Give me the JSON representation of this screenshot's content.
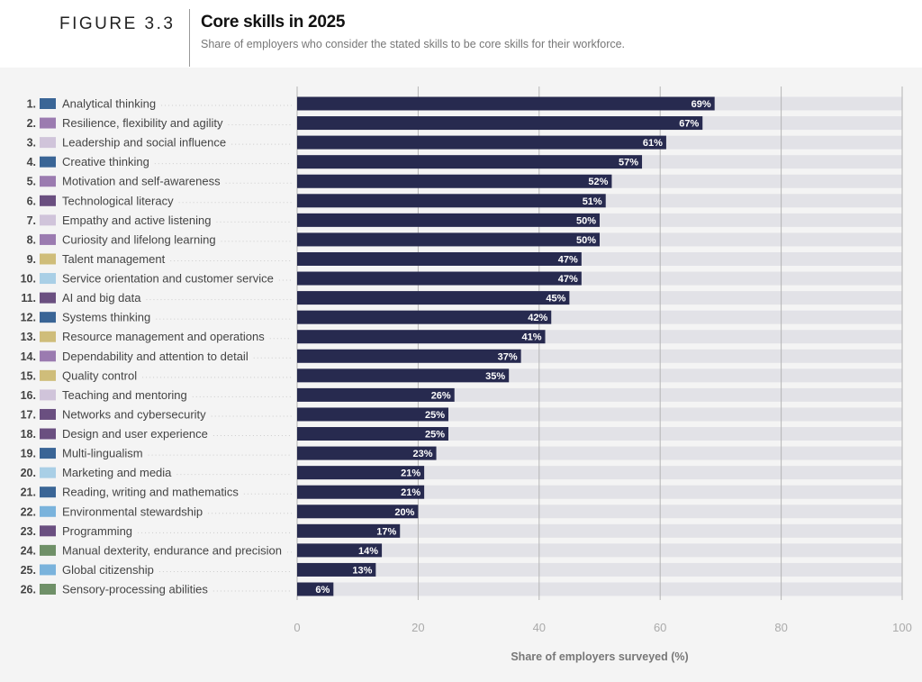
{
  "figure_label": "FIGURE 3.3",
  "chart_data": {
    "type": "bar",
    "orientation": "horizontal",
    "title": "Core skills in 2025",
    "subtitle": "Share of employers who consider the stated skills to be core skills for their workforce.",
    "xlabel": "Share of employers surveyed (%)",
    "xlim": [
      0,
      100
    ],
    "xticks": [
      0,
      20,
      40,
      60,
      80,
      100
    ],
    "grid": true,
    "bar_color": "#272a4f",
    "track_color": "#e2e2e7",
    "categories": [
      "Analytical thinking",
      "Resilience, flexibility and agility",
      "Leadership and social influence",
      "Creative thinking",
      "Motivation and self-awareness",
      "Technological literacy",
      "Empathy and active listening",
      "Curiosity and lifelong learning",
      "Talent management",
      "Service orientation and customer service",
      "AI and big data",
      "Systems thinking",
      "Resource management and operations",
      "Dependability and attention to detail",
      "Quality control",
      "Teaching and mentoring",
      "Networks and cybersecurity",
      "Design and user experience",
      "Multi-lingualism",
      "Marketing and media",
      "Reading, writing and mathematics",
      "Environmental stewardship",
      "Programming",
      "Manual dexterity, endurance and precision",
      "Global citizenship",
      "Sensory-processing abilities"
    ],
    "values": [
      69,
      67,
      61,
      57,
      52,
      51,
      50,
      50,
      47,
      47,
      45,
      42,
      41,
      37,
      35,
      26,
      25,
      25,
      23,
      21,
      21,
      20,
      17,
      14,
      13,
      6
    ],
    "category_colors": [
      "#3a6596",
      "#9b7bb0",
      "#d0c4da",
      "#3a6596",
      "#9b7bb0",
      "#6a4f80",
      "#d0c4da",
      "#9b7bb0",
      "#cfbd7a",
      "#a9cfe6",
      "#6a4f80",
      "#3a6596",
      "#cfbd7a",
      "#9b7bb0",
      "#cfbd7a",
      "#d0c4da",
      "#6a4f80",
      "#6a4f80",
      "#3a6596",
      "#a9cfe6",
      "#3a6596",
      "#7ab3dc",
      "#6a4f80",
      "#6f9068",
      "#7ab3dc",
      "#6f9068"
    ]
  }
}
